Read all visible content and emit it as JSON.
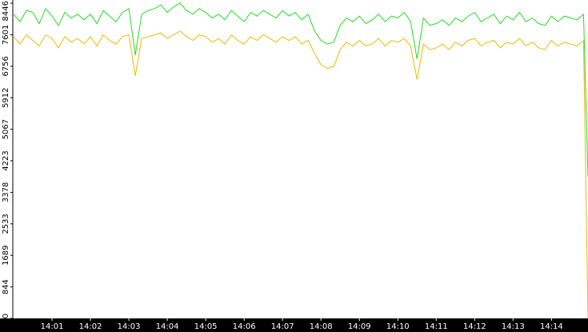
{
  "chart_data": {
    "type": "line",
    "x": [
      0,
      10,
      20,
      30,
      40,
      50,
      60,
      70,
      80,
      90,
      100,
      110,
      120,
      130,
      140,
      150,
      160,
      170,
      180,
      190,
      200,
      210,
      220,
      230,
      240,
      250,
      260,
      270,
      280,
      290,
      300,
      310,
      320,
      330,
      340,
      350,
      360,
      370,
      380,
      390,
      400,
      410,
      420,
      430,
      440,
      450,
      460,
      470,
      480,
      490,
      500,
      510,
      520,
      530,
      540,
      550,
      560,
      570,
      580,
      590,
      600,
      610,
      620,
      630,
      640,
      650,
      660,
      670,
      680,
      690,
      700,
      710,
      720,
      730,
      740,
      750,
      760,
      770,
      780,
      790,
      800,
      810,
      820,
      830,
      840,
      850,
      860,
      870,
      880,
      890,
      897
    ],
    "xlim": [
      0,
      897
    ],
    "xticks": [
      {
        "value": 60,
        "label": "14:01"
      },
      {
        "value": 120,
        "label": "14:02"
      },
      {
        "value": 180,
        "label": "14:03"
      },
      {
        "value": 240,
        "label": "14:04"
      },
      {
        "value": 300,
        "label": "14:05"
      },
      {
        "value": 360,
        "label": "14:06"
      },
      {
        "value": 420,
        "label": "14:07"
      },
      {
        "value": 480,
        "label": "14:08"
      },
      {
        "value": 540,
        "label": "14:09"
      },
      {
        "value": 600,
        "label": "14:10"
      },
      {
        "value": 660,
        "label": "14:11"
      },
      {
        "value": 720,
        "label": "14:12"
      },
      {
        "value": 780,
        "label": "14:13"
      },
      {
        "value": 840,
        "label": "14:14"
      }
    ],
    "ylim": [
      0,
      8446
    ],
    "yticks": [
      0,
      844,
      1689,
      2533,
      3378,
      4223,
      5067,
      5912,
      6756,
      7601,
      8446
    ],
    "series": [
      {
        "color": "#22dd22",
        "values": [
          8150,
          7950,
          8250,
          8200,
          7900,
          8300,
          8100,
          7850,
          8200,
          8050,
          8150,
          8000,
          8150,
          7900,
          8250,
          8100,
          7950,
          8200,
          8300,
          7050,
          8150,
          8250,
          8300,
          8400,
          8200,
          8350,
          8450,
          8250,
          8150,
          8300,
          8200,
          8050,
          8150,
          8000,
          8250,
          8100,
          7950,
          8200,
          8100,
          8250,
          8150,
          8050,
          8250,
          8100,
          8200,
          8000,
          8150,
          7700,
          7450,
          7350,
          7400,
          7850,
          8050,
          7950,
          8100,
          7900,
          8000,
          8150,
          7950,
          8100,
          8050,
          8200,
          7950,
          6950,
          8050,
          7850,
          7900,
          8000,
          7850,
          8050,
          7950,
          8100,
          8200,
          7950,
          8050,
          8150,
          7900,
          8100,
          8000,
          8200,
          7950,
          8050,
          7900,
          7850,
          8100,
          7950,
          8100,
          8050,
          8000,
          8150,
          3800
        ]
      },
      {
        "color": "#f0b800",
        "values": [
          7550,
          7350,
          7600,
          7450,
          7300,
          7600,
          7500,
          7250,
          7550,
          7400,
          7500,
          7350,
          7550,
          7300,
          7600,
          7450,
          7350,
          7550,
          7600,
          6500,
          7500,
          7550,
          7600,
          7650,
          7500,
          7600,
          7700,
          7550,
          7450,
          7600,
          7550,
          7400,
          7500,
          7350,
          7600,
          7450,
          7350,
          7550,
          7450,
          7600,
          7500,
          7400,
          7550,
          7450,
          7550,
          7350,
          7450,
          7100,
          6800,
          6700,
          6750,
          7200,
          7400,
          7300,
          7450,
          7300,
          7350,
          7500,
          7300,
          7450,
          7400,
          7500,
          7300,
          6400,
          7350,
          7200,
          7250,
          7350,
          7200,
          7400,
          7300,
          7450,
          7500,
          7300,
          7400,
          7450,
          7250,
          7400,
          7350,
          7500,
          7300,
          7400,
          7250,
          7200,
          7450,
          7300,
          7400,
          7350,
          7300,
          7450,
          0
        ]
      }
    ]
  }
}
